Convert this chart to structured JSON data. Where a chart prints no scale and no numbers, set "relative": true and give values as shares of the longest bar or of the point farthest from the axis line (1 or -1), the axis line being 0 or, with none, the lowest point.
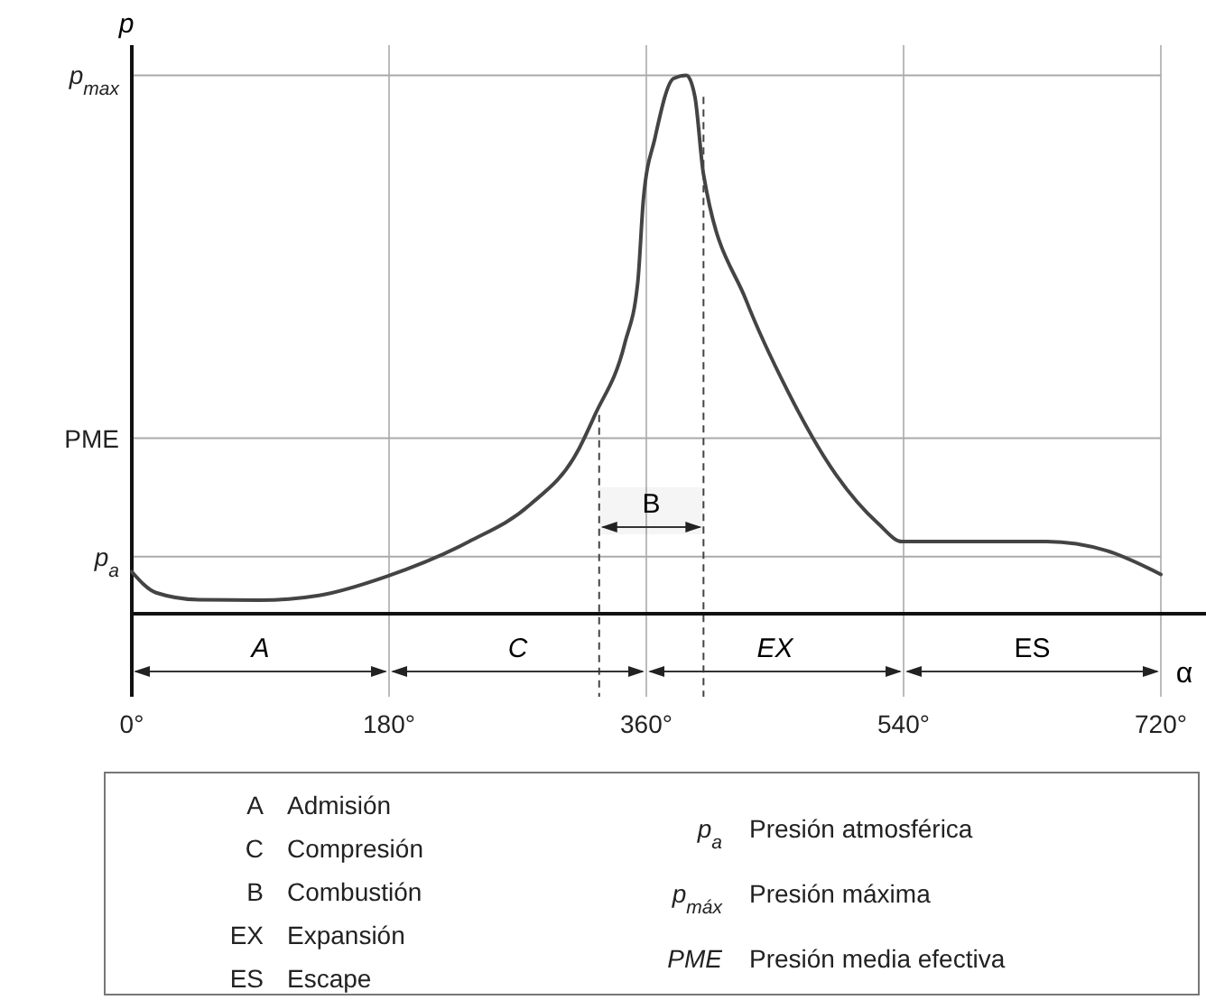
{
  "chart_data": {
    "type": "line",
    "relative": true,
    "xlabel": "α",
    "ylabel": "p",
    "xlim": [
      0,
      720
    ],
    "xticks": [
      {
        "value": 0,
        "label": "0°"
      },
      {
        "value": 180,
        "label": "180°"
      },
      {
        "value": 360,
        "label": "360°"
      },
      {
        "value": 540,
        "label": "540°"
      },
      {
        "value": 720,
        "label": "720°"
      }
    ],
    "grid": "x",
    "marker": "none",
    "line_style": "solid",
    "x": [
      0,
      17,
      47,
      89,
      131,
      178,
      236,
      278,
      312,
      324,
      345,
      354,
      358,
      366,
      379,
      388,
      394,
      400,
      430,
      459,
      493,
      522,
      539,
      577,
      640,
      682,
      720
    ],
    "series": [
      {
        "color": "#444444",
        "values": [
          0.078,
          0.039,
          0.026,
          0.025,
          0.034,
          0.069,
          0.134,
          0.201,
          0.302,
          0.369,
          0.503,
          0.615,
          0.771,
          0.883,
          0.994,
          1,
          0.96,
          0.816,
          0.581,
          0.413,
          0.257,
          0.168,
          0.134,
          0.134,
          0.134,
          0.117,
          0.073
        ]
      }
    ],
    "ref_lines": [
      {
        "axis": "y",
        "value": 1,
        "label": "p$_{max}$",
        "color": "#aaaaaa"
      },
      {
        "axis": "y",
        "value": 0.326,
        "label": "PME",
        "color": "#aaaaaa"
      },
      {
        "axis": "y",
        "value": 0.106,
        "label": "p$_{a}$",
        "color": "#aaaaaa"
      },
      {
        "axis": "x",
        "value": 327,
        "line_style": "dashed",
        "color": "#444444"
      },
      {
        "axis": "x",
        "value": 400,
        "line_style": "dashed",
        "color": "#444444"
      }
    ],
    "bands": [
      {
        "axis": "x",
        "from": 327,
        "to": 400,
        "label": "B"
      }
    ],
    "annotations": [
      "A",
      "C",
      "EX",
      "ES",
      "A Admisión",
      "C Compresión",
      "B Combustión",
      "EX Expansión",
      "ES Escape",
      "p$_{a}$ Presión atmosférica",
      "p$_{máx}$ Presión máxima",
      "PME Presión media efectiva"
    ]
  }
}
